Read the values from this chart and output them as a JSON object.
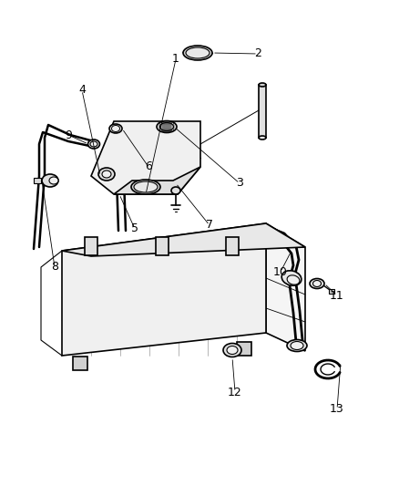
{
  "title": "",
  "bg_color": "#ffffff",
  "line_color": "#000000",
  "fill_color": "#ffffff",
  "stroke_width": 1.2,
  "label_fontsize": 9,
  "figsize": [
    4.38,
    5.33
  ],
  "dpi": 100
}
